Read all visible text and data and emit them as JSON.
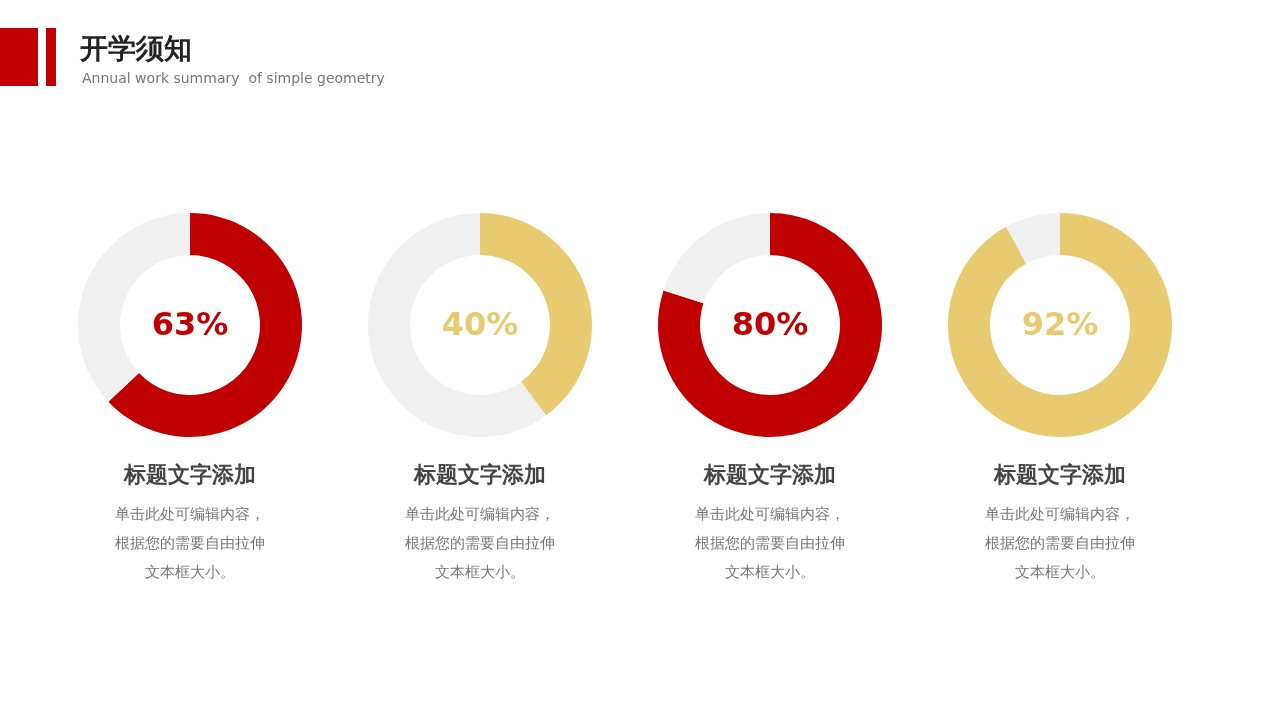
{
  "chart_data": [
    {
      "type": "other",
      "title": "开学须知",
      "subtitle": "Annual work summary  of simple geometry"
    },
    {
      "type": "donut",
      "title": "标题文字添加",
      "categories": [
        null,
        null
      ],
      "values": [
        63,
        37
      ],
      "colors": [
        "#c00000",
        "#f0f0f0"
      ],
      "value_labels": [
        "63%",
        null
      ],
      "annotations": [
        "单击此处可编辑内容，",
        "根据您的需要自由拉伸",
        "文本框大小。"
      ]
    },
    {
      "type": "donut",
      "title": "标题文字添加",
      "categories": [
        null,
        null
      ],
      "values": [
        40,
        60
      ],
      "colors": [
        "#e8cb70",
        "#f0f0f0"
      ],
      "value_labels": [
        "40%",
        null
      ],
      "annotations": [
        "单击此处可编辑内容，",
        "根据您的需要自由拉伸",
        "文本框大小。"
      ]
    },
    {
      "type": "donut",
      "title": "标题文字添加",
      "categories": [
        null,
        null
      ],
      "values": [
        80,
        20
      ],
      "colors": [
        "#c00000",
        "#f0f0f0"
      ],
      "value_labels": [
        "80%",
        null
      ],
      "annotations": [
        "单击此处可编辑内容，",
        "根据您的需要自由拉伸",
        "文本框大小。"
      ]
    },
    {
      "type": "donut",
      "title": "标题文字添加",
      "categories": [
        null,
        null
      ],
      "values": [
        92,
        8
      ],
      "colors": [
        "#e8cb70",
        "#f0f0f0"
      ],
      "value_labels": [
        "92%",
        null
      ],
      "annotations": [
        "单击此处可编辑内容，",
        "根据您的需要自由拉伸",
        "文本框大小。"
      ]
    }
  ]
}
